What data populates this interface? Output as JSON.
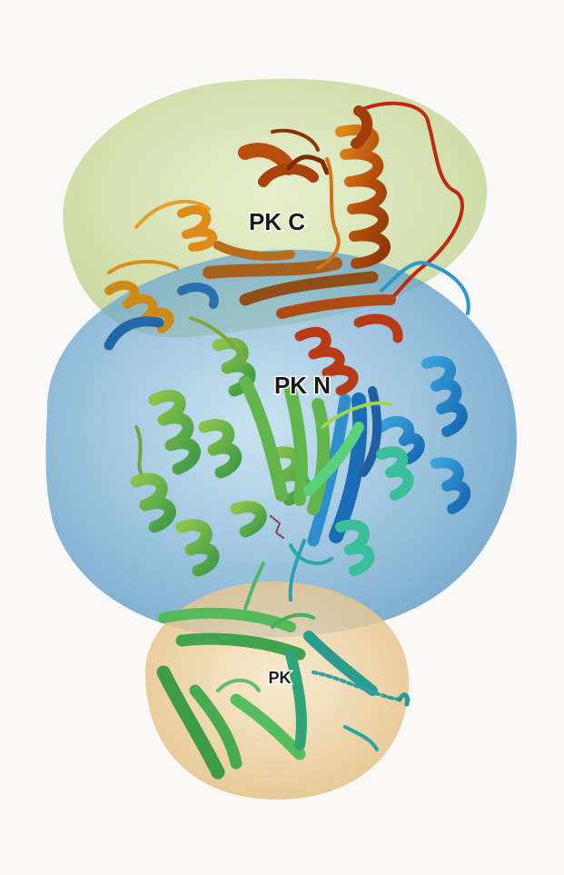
{
  "figure": {
    "background": "#faf9f7",
    "domains": [
      {
        "id": "c",
        "label": "PK C",
        "color": "#c9dc9a"
      },
      {
        "id": "n",
        "label": "PK N",
        "color": "#6aaad4"
      },
      {
        "id": "pk",
        "label": "PK",
        "color": "#efcf94"
      }
    ]
  }
}
